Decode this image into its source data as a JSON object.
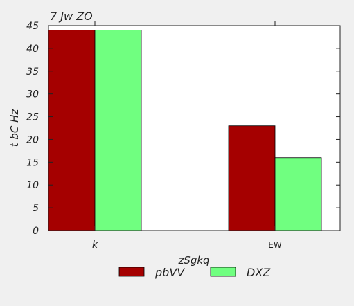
{
  "chart_data": {
    "type": "bar",
    "title": "7 Jw ZO",
    "xlabel": "zSgkq",
    "ylabel": "t bC Hz",
    "categories": [
      "k",
      "EW"
    ],
    "series": [
      {
        "name": "pbVV",
        "values": [
          44,
          23
        ]
      },
      {
        "name": "DXZ",
        "values": [
          44,
          16
        ]
      }
    ],
    "ylim": [
      0,
      45
    ],
    "yticks": [
      0,
      5,
      10,
      15,
      20,
      25,
      30,
      35,
      40,
      45
    ],
    "grid": false,
    "legend_position": "bottom",
    "colors": [
      "#a50000",
      "#70ff80"
    ]
  }
}
